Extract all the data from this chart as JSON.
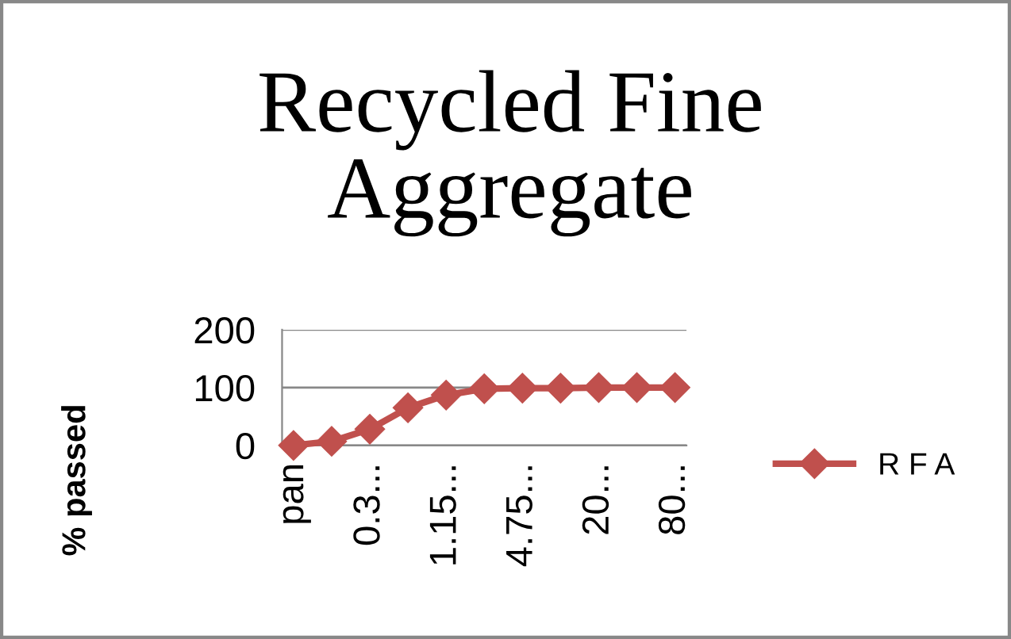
{
  "chart_data": {
    "type": "line",
    "title": "Recycled Fine Aggregate",
    "ylabel": "% passed",
    "categories": [
      "pan",
      null,
      "0.3...",
      null,
      "1.15...",
      null,
      "4.75...",
      null,
      "20...",
      null,
      "80..."
    ],
    "series": [
      {
        "name": "R F A",
        "color": "#c0504d",
        "values": [
          0,
          7,
          28,
          65,
          87,
          98,
          99,
          99,
          100,
          100,
          100
        ]
      }
    ],
    "ylim": [
      0,
      200
    ],
    "yticks": [
      0,
      100,
      200
    ],
    "grid": "y",
    "legend": "right",
    "marker": "diamond",
    "line_style": "solid"
  }
}
